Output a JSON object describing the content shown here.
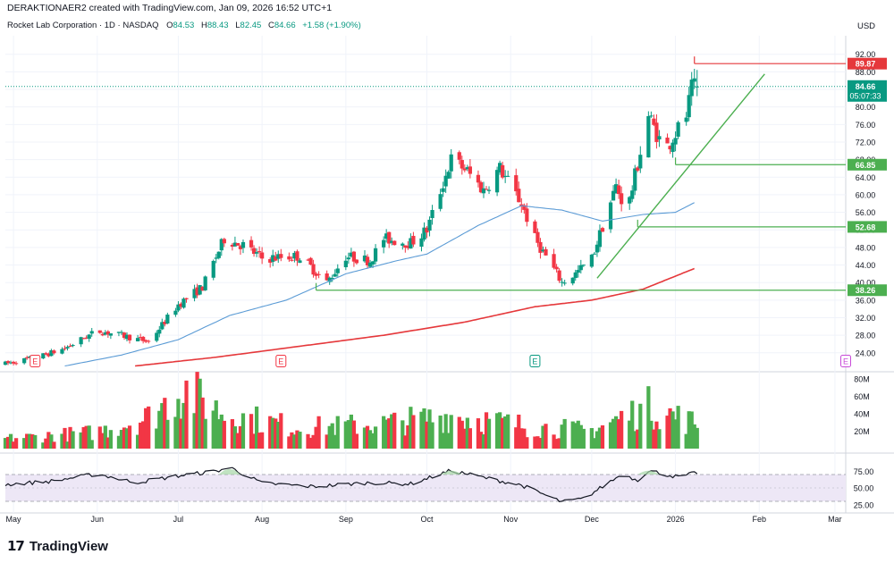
{
  "header": {
    "top_line": "DERAKTIONAER2 created with TradingView.com, Jan 09, 2026 16:52 UTC+1",
    "symbol": "Rocket Lab Corporation · 1D · NASDAQ",
    "ohlc": [
      {
        "label": "O",
        "value": "84.53"
      },
      {
        "label": "H",
        "value": "88.43"
      },
      {
        "label": "L",
        "value": "82.45"
      },
      {
        "label": "C",
        "value": "84.66"
      }
    ],
    "change": "+1.58 (+1.90%)",
    "currency": "USD"
  },
  "footer": {
    "logo_mark": "17",
    "logo_text": "TradingView"
  },
  "colors": {
    "up": "#089981",
    "down": "#f23645",
    "up_vol": "#4caf50",
    "down_vol": "#f23645",
    "ma_short": "#5b9bd5",
    "ma_long": "#e5383b",
    "trend": "#4caf50",
    "level_red": "#e5383b",
    "level_green": "#4caf50",
    "rsi_line": "#131722",
    "rsi_band": "#ede7f6"
  },
  "chart_data": {
    "type": "candlestick",
    "price_axis": {
      "range": [
        20.5,
        95.2
      ],
      "ticks": [
        "92.00",
        "88.00",
        "84.00",
        "80.00",
        "76.00",
        "72.00",
        "68.00",
        "64.00",
        "60.00",
        "56.00",
        "52.00",
        "48.00",
        "44.00",
        "40.00",
        "36.00",
        "32.00",
        "28.00",
        "24.00"
      ]
    },
    "time_axis": {
      "range": [
        "2025-04-28",
        "2026-03-05"
      ],
      "ticks": [
        {
          "label": "May",
          "date": "2025-05-01"
        },
        {
          "label": "Jun",
          "date": "2025-06-01"
        },
        {
          "label": "Jul",
          "date": "2025-07-01"
        },
        {
          "label": "Aug",
          "date": "2025-08-01"
        },
        {
          "label": "Sep",
          "date": "2025-09-01"
        },
        {
          "label": "Oct",
          "date": "2025-10-01"
        },
        {
          "label": "Nov",
          "date": "2025-11-01"
        },
        {
          "label": "Dec",
          "date": "2025-12-01"
        },
        {
          "label": "2026",
          "date": "2026-01-01"
        },
        {
          "label": "Feb",
          "date": "2026-02-01"
        },
        {
          "label": "Mar",
          "date": "2026-03-01"
        }
      ]
    },
    "price_anchors": [
      [
        "2025-04-28",
        21.5
      ],
      [
        "2025-05-10",
        23.0
      ],
      [
        "2025-05-20",
        25.0
      ],
      [
        "2025-06-01",
        29.0
      ],
      [
        "2025-06-10",
        28.0
      ],
      [
        "2025-06-20",
        26.5
      ],
      [
        "2025-07-01",
        35.0
      ],
      [
        "2025-07-10",
        39.0
      ],
      [
        "2025-07-18",
        50.0
      ],
      [
        "2025-07-25",
        48.5
      ],
      [
        "2025-08-01",
        45.5
      ],
      [
        "2025-08-15",
        46.0
      ],
      [
        "2025-08-25",
        40.0
      ],
      [
        "2025-09-01",
        46.0
      ],
      [
        "2025-09-10",
        45.0
      ],
      [
        "2025-09-15",
        50.0
      ],
      [
        "2025-09-25",
        49.0
      ],
      [
        "2025-10-01",
        52.0
      ],
      [
        "2025-10-10",
        68.0
      ],
      [
        "2025-10-15",
        66.0
      ],
      [
        "2025-10-22",
        61.0
      ],
      [
        "2025-10-28",
        66.0
      ],
      [
        "2025-11-05",
        58.0
      ],
      [
        "2025-11-10",
        50.0
      ],
      [
        "2025-11-20",
        40.0
      ],
      [
        "2025-11-25",
        42.0
      ],
      [
        "2025-12-01",
        45.5
      ],
      [
        "2025-12-10",
        62.0
      ],
      [
        "2025-12-14",
        56.0
      ],
      [
        "2025-12-22",
        78.0
      ],
      [
        "2025-12-28",
        70.0
      ],
      [
        "2026-01-05",
        78.0
      ],
      [
        "2026-01-07",
        84.0
      ],
      [
        "2026-01-09",
        84.66
      ]
    ],
    "last_bar": {
      "date": "2026-01-09",
      "open": 84.53,
      "high": 88.43,
      "low": 82.45,
      "close": 84.66
    },
    "horizontal_levels": [
      {
        "label": "89.87",
        "value": 89.87,
        "color": "red",
        "from": "2026-01-08"
      },
      {
        "label": "66.85",
        "value": 66.85,
        "color": "green",
        "from": "2026-01-01"
      },
      {
        "label": "52.68",
        "value": 52.68,
        "color": "green",
        "from": "2025-12-18"
      },
      {
        "label": "38.26",
        "value": 38.26,
        "color": "green",
        "from": "2025-08-21"
      }
    ],
    "trendline": {
      "from": {
        "date": "2025-12-03",
        "value": 41.0
      },
      "to": {
        "date": "2026-02-03",
        "value": 87.5
      }
    },
    "current_price": {
      "label": "84.66",
      "countdown": "05:07:33",
      "value": 84.66
    },
    "earnings_markers": [
      {
        "label": "E",
        "date": "2025-05-09",
        "color": "red"
      },
      {
        "label": "E",
        "date": "2025-08-08",
        "color": "red"
      },
      {
        "label": "E",
        "date": "2025-11-10",
        "color": "teal"
      },
      {
        "label": "E",
        "date": "2026-03-05",
        "color": "purple"
      }
    ],
    "ma_short": {
      "name": "",
      "anchors": [
        [
          "2025-05-20",
          21.0
        ],
        [
          "2025-06-10",
          23.5
        ],
        [
          "2025-07-01",
          27.0
        ],
        [
          "2025-07-20",
          32.5
        ],
        [
          "2025-08-10",
          36.0
        ],
        [
          "2025-09-01",
          42.0
        ],
        [
          "2025-09-20",
          45.0
        ],
        [
          "2025-10-01",
          46.5
        ],
        [
          "2025-10-20",
          53.0
        ],
        [
          "2025-11-05",
          57.5
        ],
        [
          "2025-11-20",
          56.5
        ],
        [
          "2025-12-05",
          54.0
        ],
        [
          "2025-12-20",
          55.5
        ],
        [
          "2026-01-01",
          56.0
        ],
        [
          "2026-01-08",
          58.2
        ]
      ]
    },
    "ma_long": {
      "name": "",
      "anchors": [
        [
          "2025-06-15",
          21.0
        ],
        [
          "2025-07-15",
          23.0
        ],
        [
          "2025-08-15",
          25.5
        ],
        [
          "2025-09-15",
          28.0
        ],
        [
          "2025-10-15",
          31.0
        ],
        [
          "2025-11-10",
          34.5
        ],
        [
          "2025-12-01",
          36.0
        ],
        [
          "2025-12-20",
          38.5
        ],
        [
          "2026-01-08",
          43.2
        ]
      ]
    },
    "volume_axis": {
      "unit": "M",
      "range": [
        0,
        84
      ],
      "ticks": [
        "80M",
        "60M",
        "40M",
        "20M"
      ]
    },
    "volume_anchors": [
      [
        "2025-04-28",
        12
      ],
      [
        "2025-06-01",
        20
      ],
      [
        "2025-06-20",
        38
      ],
      [
        "2025-07-03",
        72
      ],
      [
        "2025-07-18",
        42
      ],
      [
        "2025-08-15",
        25
      ],
      [
        "2025-09-15",
        30
      ],
      [
        "2025-10-10",
        40
      ],
      [
        "2025-11-10",
        26
      ],
      [
        "2025-12-01",
        22
      ],
      [
        "2025-12-22",
        50
      ],
      [
        "2026-01-09",
        30
      ]
    ],
    "rsi": {
      "range": [
        18,
        90
      ],
      "ticks": [
        "75.00",
        "50.00",
        "25.00"
      ],
      "bands": [
        30,
        70
      ],
      "anchors": [
        [
          "2025-04-28",
          55
        ],
        [
          "2025-05-15",
          60
        ],
        [
          "2025-06-01",
          71
        ],
        [
          "2025-06-15",
          58
        ],
        [
          "2025-07-01",
          68
        ],
        [
          "2025-07-15",
          75
        ],
        [
          "2025-07-20",
          81
        ],
        [
          "2025-08-01",
          57
        ],
        [
          "2025-08-20",
          52
        ],
        [
          "2025-09-10",
          58
        ],
        [
          "2025-09-25",
          56
        ],
        [
          "2025-10-10",
          76
        ],
        [
          "2025-10-25",
          63
        ],
        [
          "2025-11-05",
          54
        ],
        [
          "2025-11-20",
          29
        ],
        [
          "2025-11-28",
          34
        ],
        [
          "2025-12-12",
          70
        ],
        [
          "2025-12-18",
          62
        ],
        [
          "2025-12-22",
          76
        ],
        [
          "2026-01-02",
          66
        ],
        [
          "2026-01-09",
          73
        ]
      ]
    }
  }
}
